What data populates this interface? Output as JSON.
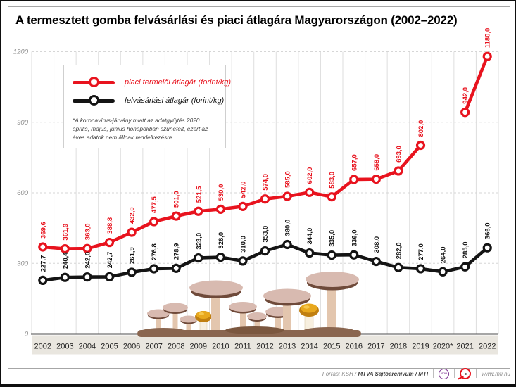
{
  "title": "A termesztett gomba felvásárlási és piaci átlagára Magyarországon (2002–2022)",
  "chart_data": {
    "type": "line",
    "categories": [
      "2002",
      "2003",
      "2004",
      "2005",
      "2006",
      "2007",
      "2008",
      "2009",
      "2010",
      "2011",
      "2012",
      "2013",
      "2014",
      "2015",
      "2016",
      "2017",
      "2018",
      "2019",
      "2020*",
      "2021",
      "2022"
    ],
    "series": [
      {
        "name": "piaci termelői átlagár (forint/kg)",
        "color": "#e8131e",
        "values": [
          369.6,
          361.9,
          363.0,
          388.8,
          432.0,
          477.5,
          501.0,
          521.5,
          530.0,
          542.0,
          574.0,
          585.0,
          602.0,
          583.0,
          657.0,
          658.0,
          693.0,
          802.0,
          null,
          942.0,
          1180.0
        ]
      },
      {
        "name": "felvásárlási átlagár (forint/kg)",
        "color": "#141414",
        "values": [
          227.7,
          240.4,
          242.0,
          242.7,
          261.9,
          276.8,
          278.9,
          323.0,
          326.0,
          310.0,
          353.0,
          380.0,
          344.0,
          335.0,
          336.0,
          308.0,
          282.0,
          277.0,
          264.0,
          285.0,
          366.0
        ]
      }
    ],
    "ylim": [
      0,
      1200
    ],
    "yticks": [
      0,
      300,
      600,
      900,
      1200
    ],
    "grid": true,
    "legend_position": "top-left",
    "value_labels": "rotated-90-comma-decimal",
    "footnote": "*A koronavírus-járvány miatt az adatgyűjtés 2020. április, május, június hónapokban szünetelt, ezért az éves adatok nem állnak rendelkezésre."
  },
  "footer": {
    "source_prefix": "Forrás: KSH / ",
    "source_bold": "MTVA Sajtóarchívum / MTI",
    "mtva_logo_text": "MTVA",
    "website": "www.mti.hu"
  }
}
